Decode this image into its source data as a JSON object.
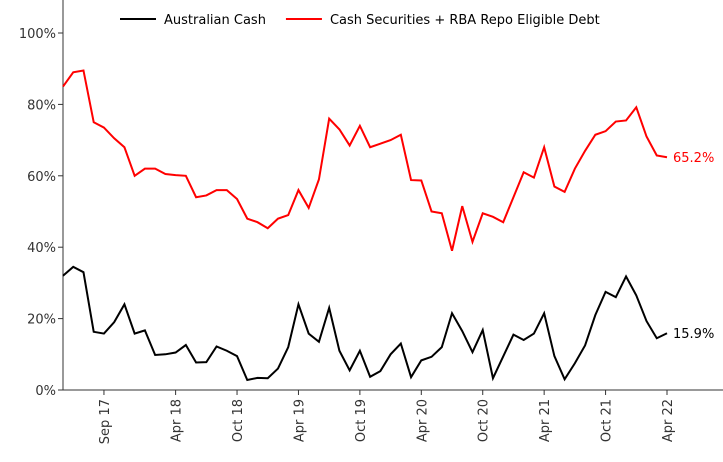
{
  "chart_data": {
    "type": "line",
    "categories": [
      null,
      null,
      null,
      null,
      "Sep 17",
      null,
      null,
      null,
      null,
      null,
      null,
      "Apr 18",
      null,
      null,
      null,
      null,
      null,
      "Oct 18",
      null,
      null,
      null,
      null,
      null,
      "Apr 19",
      null,
      null,
      null,
      null,
      null,
      "Oct 19",
      null,
      null,
      null,
      null,
      null,
      "Apr 20",
      null,
      null,
      null,
      null,
      null,
      "Oct 20",
      null,
      null,
      null,
      null,
      null,
      "Apr 21",
      null,
      null,
      null,
      null,
      null,
      "Oct 21",
      null,
      null,
      null,
      null,
      null,
      "Apr 22"
    ],
    "series": [
      {
        "name": "Australian Cash",
        "color": "#000000",
        "values": [
          32,
          34.5,
          33,
          16.3,
          15.8,
          19,
          24,
          15.8,
          16.7,
          9.8,
          10,
          10.5,
          12.6,
          7.7,
          7.8,
          12.2,
          11,
          9.5,
          2.8,
          3.4,
          3.3,
          6,
          12,
          24,
          15.8,
          13.5,
          23,
          11,
          5.5,
          11,
          3.7,
          5.3,
          10,
          13,
          3.6,
          8.3,
          9.3,
          12,
          21.5,
          16.5,
          10.6,
          16.8,
          3.3,
          9.4,
          15.5,
          14,
          15.8,
          21.5,
          9.5,
          3,
          7.5,
          12.5,
          21,
          27.5,
          26,
          31.8,
          26.5,
          19.3,
          14.5,
          15.9
        ],
        "value_labels": [
          null,
          null,
          null,
          null,
          null,
          null,
          null,
          null,
          null,
          null,
          null,
          null,
          null,
          null,
          null,
          null,
          null,
          null,
          null,
          null,
          null,
          null,
          null,
          null,
          null,
          null,
          null,
          null,
          null,
          null,
          null,
          null,
          null,
          null,
          null,
          null,
          null,
          null,
          null,
          null,
          null,
          null,
          null,
          null,
          null,
          null,
          null,
          null,
          null,
          null,
          null,
          null,
          null,
          null,
          null,
          null,
          null,
          null,
          null,
          "15.9%"
        ]
      },
      {
        "name": "Cash Securities + RBA Repo Eligible Debt",
        "color": "#ff0000",
        "values": [
          85,
          89,
          89.5,
          75,
          73.5,
          70.5,
          68,
          60,
          62,
          62,
          60.5,
          60.2,
          60,
          54,
          54.5,
          56,
          56,
          53.5,
          48,
          47,
          45.3,
          48,
          49,
          56,
          51,
          59,
          76,
          73,
          68.5,
          74,
          68,
          69,
          70,
          71.5,
          58.8,
          58.7,
          50,
          49.5,
          39,
          51.5,
          41.5,
          49.5,
          48.5,
          47,
          54,
          61,
          59.5,
          68,
          57,
          55.5,
          62,
          67,
          71.5,
          72.5,
          75.2,
          75.5,
          79.2,
          71,
          65.7,
          65.2
        ],
        "value_labels": [
          null,
          null,
          null,
          null,
          null,
          null,
          null,
          null,
          null,
          null,
          null,
          null,
          null,
          null,
          null,
          null,
          null,
          null,
          null,
          null,
          null,
          null,
          null,
          null,
          null,
          null,
          null,
          null,
          null,
          null,
          null,
          null,
          null,
          null,
          null,
          null,
          null,
          null,
          null,
          null,
          null,
          null,
          null,
          null,
          null,
          null,
          null,
          null,
          null,
          null,
          null,
          null,
          null,
          null,
          null,
          null,
          null,
          null,
          null,
          "65.2%"
        ]
      }
    ],
    "ylim": [
      0,
      100
    ],
    "yticks": [
      {
        "value": 0,
        "label": "0%"
      },
      {
        "value": 20,
        "label": "20%"
      },
      {
        "value": 40,
        "label": "40%"
      },
      {
        "value": 60,
        "label": "60%"
      },
      {
        "value": 80,
        "label": "80%"
      },
      {
        "value": 100,
        "label": "100%"
      }
    ],
    "grid": false,
    "legend": "top"
  }
}
